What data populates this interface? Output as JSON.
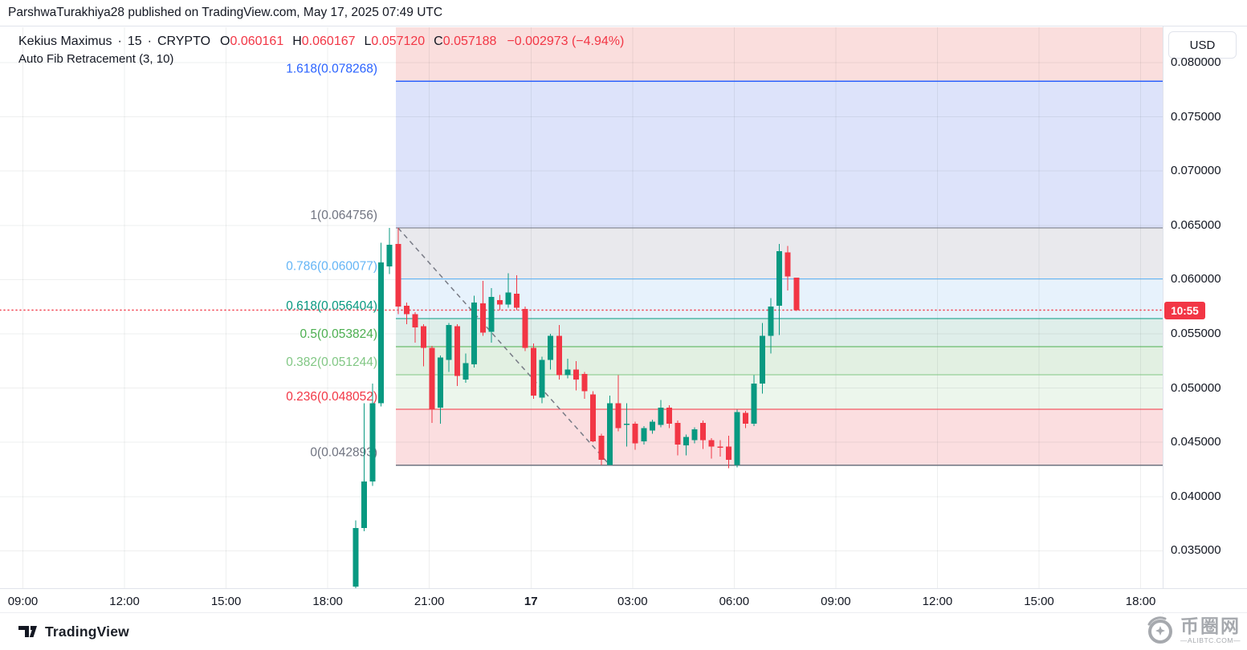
{
  "header": {
    "published_line": "ParshwaTurakhiya28 published on TradingView.com, May 17, 2025 07:49 UTC"
  },
  "legend": {
    "title": "Kekius Maximus",
    "separator": "·",
    "interval": "15",
    "exchange": "CRYPTO",
    "ohlc": [
      {
        "label": "O",
        "value": "0.060161"
      },
      {
        "label": "H",
        "value": "0.060167"
      },
      {
        "label": "L",
        "value": "0.057120"
      },
      {
        "label": "C",
        "value": "0.057188"
      }
    ],
    "value_color": "#f23645",
    "change": "−0.002973 (−4.94%)",
    "indicator": "Auto Fib Retracement (3, 10)"
  },
  "price_axis": {
    "currency": "USD",
    "countdown": "10:55",
    "countdown_bg": "#f23645"
  },
  "footer": {
    "tradingview": "TradingView",
    "watermark_cn": "币圈网",
    "watermark_sub": "—ALIBTC.COM—"
  },
  "chart_data": {
    "type": "candlestick",
    "symbol": "Kekius Maximus",
    "interval": "15",
    "exchange": "CRYPTO",
    "currency": "USD",
    "colors": {
      "up": "#089981",
      "down": "#f23645",
      "grid": "rgba(42,46,57,0.08)"
    },
    "y_axis": {
      "ticks": [
        "0.080000",
        "0.075000",
        "0.070000",
        "0.065000",
        "0.060000",
        "0.055000",
        "0.050000",
        "0.045000",
        "0.040000",
        "0.035000"
      ]
    },
    "x_axis": {
      "ticks": [
        {
          "label": "09:00"
        },
        {
          "label": "12:00"
        },
        {
          "label": "15:00"
        },
        {
          "label": "18:00"
        },
        {
          "label": "21:00"
        },
        {
          "label": "17",
          "bold": true
        },
        {
          "label": "03:00"
        },
        {
          "label": "06:00"
        },
        {
          "label": "09:00"
        },
        {
          "label": "12:00"
        },
        {
          "label": "15:00"
        },
        {
          "label": "18:00"
        }
      ]
    },
    "candle_fields": [
      "time",
      "open",
      "high",
      "low",
      "close"
    ],
    "candles": [
      [
        "18:45",
        0.0317,
        0.0378,
        0.0315,
        0.0371
      ],
      [
        "19:00",
        0.0371,
        0.0486,
        0.0368,
        0.0414
      ],
      [
        "19:15",
        0.0414,
        0.0504,
        0.041,
        0.0486
      ],
      [
        "19:30",
        0.0486,
        0.0634,
        0.0483,
        0.0616
      ],
      [
        "19:45",
        0.0612,
        0.064756,
        0.0605,
        0.0632
      ],
      [
        "20:00",
        0.0633,
        0.064756,
        0.0568,
        0.0575
      ],
      [
        "20:15",
        0.0576,
        0.0579,
        0.0559,
        0.0568
      ],
      [
        "20:30",
        0.0568,
        0.057,
        0.0542,
        0.0556
      ],
      [
        "20:45",
        0.0557,
        0.0559,
        0.052,
        0.0537
      ],
      [
        "21:00",
        0.0537,
        0.0539,
        0.0468,
        0.048
      ],
      [
        "21:15",
        0.0482,
        0.053,
        0.0467,
        0.0528
      ],
      [
        "21:30",
        0.0526,
        0.056,
        0.0515,
        0.0558
      ],
      [
        "21:45",
        0.0557,
        0.0559,
        0.0502,
        0.0511
      ],
      [
        "22:00",
        0.0508,
        0.0532,
        0.0505,
        0.0523
      ],
      [
        "22:15",
        0.0522,
        0.0585,
        0.0519,
        0.0579
      ],
      [
        "22:30",
        0.0578,
        0.0599,
        0.0548,
        0.0551
      ],
      [
        "22:45",
        0.0552,
        0.0592,
        0.0542,
        0.0584
      ],
      [
        "23:00",
        0.0581,
        0.0586,
        0.0572,
        0.0577
      ],
      [
        "23:15",
        0.0577,
        0.0606,
        0.0574,
        0.0588
      ],
      [
        "23:30",
        0.0587,
        0.0604,
        0.0572,
        0.0574
      ],
      [
        "23:45",
        0.0573,
        0.0575,
        0.0534,
        0.0537
      ],
      [
        "00:00",
        0.0537,
        0.0541,
        0.049,
        0.0493
      ],
      [
        "00:15",
        0.0491,
        0.0529,
        0.0486,
        0.0526
      ],
      [
        "00:30",
        0.0526,
        0.055,
        0.0517,
        0.0548
      ],
      [
        "00:45",
        0.0548,
        0.0558,
        0.0508,
        0.0512
      ],
      [
        "01:00",
        0.0512,
        0.0527,
        0.0509,
        0.0517
      ],
      [
        "01:15",
        0.0517,
        0.0525,
        0.0498,
        0.0508
      ],
      [
        "01:30",
        0.0513,
        0.0515,
        0.049,
        0.0497
      ],
      [
        "01:45",
        0.0494,
        0.0497,
        0.045,
        0.0451
      ],
      [
        "02:00",
        0.0456,
        0.0458,
        0.0429,
        0.0434
      ],
      [
        "02:15",
        0.0429,
        0.0493,
        0.042893,
        0.0486
      ],
      [
        "02:30",
        0.0486,
        0.0512,
        0.046,
        0.0463
      ],
      [
        "02:45",
        0.0466,
        0.0486,
        0.0446,
        0.0467
      ],
      [
        "03:00",
        0.0467,
        0.0469,
        0.0443,
        0.0449
      ],
      [
        "03:15",
        0.0451,
        0.0465,
        0.0448,
        0.0463
      ],
      [
        "03:30",
        0.0461,
        0.0471,
        0.0458,
        0.0469
      ],
      [
        "03:45",
        0.0466,
        0.0489,
        0.0464,
        0.0482
      ],
      [
        "04:00",
        0.0482,
        0.0484,
        0.0463,
        0.0467
      ],
      [
        "04:15",
        0.0468,
        0.047,
        0.0438,
        0.0448
      ],
      [
        "04:30",
        0.0447,
        0.0457,
        0.0438,
        0.0455
      ],
      [
        "04:45",
        0.0452,
        0.0464,
        0.0449,
        0.0462
      ],
      [
        "05:00",
        0.0468,
        0.047,
        0.0444,
        0.0452
      ],
      [
        "05:15",
        0.0452,
        0.0454,
        0.0435,
        0.0446
      ],
      [
        "05:30",
        0.0446,
        0.0452,
        0.0437,
        0.0445
      ],
      [
        "05:45",
        0.0446,
        0.0456,
        0.0426,
        0.0434
      ],
      [
        "06:00",
        0.0429,
        0.048,
        0.0427,
        0.0478
      ],
      [
        "06:15",
        0.0477,
        0.0479,
        0.0463,
        0.0467
      ],
      [
        "06:30",
        0.0467,
        0.0512,
        0.0465,
        0.0504
      ],
      [
        "06:45",
        0.0504,
        0.056,
        0.0495,
        0.0548
      ],
      [
        "07:00",
        0.0548,
        0.0583,
        0.0532,
        0.0575
      ],
      [
        "07:15",
        0.0576,
        0.0633,
        0.0549,
        0.0626
      ],
      [
        "07:30",
        0.0625,
        0.0631,
        0.059,
        0.0603
      ],
      [
        "07:45",
        0.060161,
        0.060167,
        0.05712,
        0.057188
      ]
    ],
    "last_price": 0.057188,
    "current_price_line": {
      "price": 0.057188,
      "color": "#f23645",
      "style": "dotted"
    },
    "fib": {
      "name": "Auto Fib Retracement (3, 10)",
      "trend_line": {
        "style": "dashed",
        "color": "#787b86",
        "from": {
          "time": "20:00",
          "price": 0.064756
        },
        "to": {
          "time": "02:15",
          "price": 0.042893
        }
      },
      "levels": [
        {
          "level": "1.618",
          "price": 0.078268,
          "color": "#2962ff",
          "width": 1.6
        },
        {
          "level": "1",
          "price": 0.064756,
          "color": "#6f7380",
          "width": 1.1
        },
        {
          "level": "0.786",
          "price": 0.060077,
          "color": "#64b5f6",
          "width": 1.1
        },
        {
          "level": "0.618",
          "price": 0.056404,
          "color": "#089981",
          "width": 1.1
        },
        {
          "level": "0.5",
          "price": 0.053824,
          "color": "#4caf50",
          "width": 1.1
        },
        {
          "level": "0.382",
          "price": 0.051244,
          "color": "#81c784",
          "width": 1.1
        },
        {
          "level": "0.236",
          "price": 0.048052,
          "color": "#f23645",
          "width": 1.1
        },
        {
          "level": "0",
          "price": 0.042893,
          "color": "#6f7380",
          "width": 1.1
        }
      ],
      "zones": [
        {
          "above_level": "1.618",
          "fill": "#fadedd"
        },
        {
          "from_level": "1.618",
          "to_level": "1",
          "fill": "#dde3fa"
        },
        {
          "from_level": "1",
          "to_level": "0.786",
          "fill": "#e9e9ed"
        },
        {
          "from_level": "0.786",
          "to_level": "0.618",
          "fill": "#e7f2fc"
        },
        {
          "from_level": "0.618",
          "to_level": "0.5",
          "fill": "#dfeeea"
        },
        {
          "from_level": "0.5",
          "to_level": "0.382",
          "fill": "#e2f0e2"
        },
        {
          "from_level": "0.382",
          "to_level": "0.236",
          "fill": "#ecf6ec"
        },
        {
          "from_level": "0.236",
          "to_level": "0",
          "fill": "#fbdee0"
        }
      ]
    }
  }
}
